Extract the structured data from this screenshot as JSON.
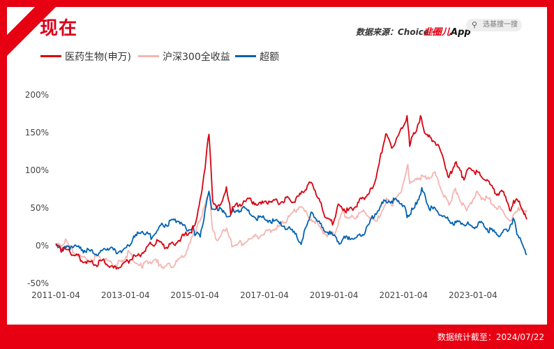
{
  "header": {
    "title": "现在",
    "source": "数据来源：Choice · ",
    "brand_red": "韭圈儿",
    "brand_app": "App",
    "search_placeholder": "选基搜一搜",
    "search_icon": "search-icon"
  },
  "footer": {
    "data_date": "数据统计截至：2024/07/22"
  },
  "colors": {
    "frame": "#e60012",
    "series_1": "#d7000f",
    "series_2": "#f4b5b1",
    "series_3": "#0061b0"
  },
  "chart_data": {
    "type": "line",
    "title": "",
    "xlabel": "",
    "ylabel": "",
    "ylim": [
      -50,
      200
    ],
    "yticks": [
      -50,
      0,
      50,
      100,
      150,
      200
    ],
    "ytick_labels": [
      "-50%",
      "0%",
      "50%",
      "100%",
      "150%",
      "200%"
    ],
    "xlim": [
      "2011-01-04",
      "2024-07-22"
    ],
    "xticks": [
      "2011-01-04",
      "2013-01-04",
      "2015-01-04",
      "2017-01-04",
      "2019-01-04",
      "2021-01-04",
      "2023-01-04"
    ],
    "grid": false,
    "legend": "top-left",
    "series": [
      {
        "name": "医药生物(申万)",
        "color": "#d7000f",
        "points": [
          [
            "2011-01-04",
            0
          ],
          [
            "2011-03-01",
            -5
          ],
          [
            "2011-06-01",
            -8
          ],
          [
            "2011-09-01",
            -15
          ],
          [
            "2011-12-01",
            -22
          ],
          [
            "2012-03-01",
            -25
          ],
          [
            "2012-06-01",
            -20
          ],
          [
            "2012-09-01",
            -30
          ],
          [
            "2012-12-01",
            -27
          ],
          [
            "2013-03-01",
            -18
          ],
          [
            "2013-06-01",
            -12
          ],
          [
            "2013-09-01",
            0
          ],
          [
            "2013-12-01",
            5
          ],
          [
            "2014-03-01",
            -2
          ],
          [
            "2014-06-01",
            3
          ],
          [
            "2014-09-01",
            12
          ],
          [
            "2014-12-01",
            20
          ],
          [
            "2015-01-04",
            28
          ],
          [
            "2015-03-01",
            60
          ],
          [
            "2015-05-01",
            115
          ],
          [
            "2015-06-01",
            150
          ],
          [
            "2015-07-10",
            60
          ],
          [
            "2015-09-01",
            50
          ],
          [
            "2015-12-01",
            75
          ],
          [
            "2016-01-15",
            45
          ],
          [
            "2016-04-01",
            55
          ],
          [
            "2016-08-01",
            60
          ],
          [
            "2016-12-01",
            55
          ],
          [
            "2017-03-01",
            60
          ],
          [
            "2017-06-01",
            58
          ],
          [
            "2017-09-01",
            62
          ],
          [
            "2017-12-01",
            60
          ],
          [
            "2018-03-01",
            75
          ],
          [
            "2018-05-20",
            85
          ],
          [
            "2018-08-01",
            60
          ],
          [
            "2018-10-20",
            35
          ],
          [
            "2018-12-20",
            30
          ],
          [
            "2019-03-01",
            55
          ],
          [
            "2019-06-01",
            45
          ],
          [
            "2019-09-01",
            55
          ],
          [
            "2019-12-01",
            65
          ],
          [
            "2020-02-01",
            75
          ],
          [
            "2020-04-01",
            95
          ],
          [
            "2020-07-01",
            150
          ],
          [
            "2020-09-01",
            130
          ],
          [
            "2020-12-01",
            150
          ],
          [
            "2021-02-10",
            170
          ],
          [
            "2021-03-10",
            135
          ],
          [
            "2021-05-01",
            150
          ],
          [
            "2021-07-01",
            170
          ],
          [
            "2021-09-01",
            145
          ],
          [
            "2021-12-01",
            140
          ],
          [
            "2022-03-01",
            115
          ],
          [
            "2022-04-25",
            90
          ],
          [
            "2022-07-01",
            110
          ],
          [
            "2022-10-01",
            90
          ],
          [
            "2022-12-01",
            105
          ],
          [
            "2023-03-01",
            95
          ],
          [
            "2023-06-01",
            85
          ],
          [
            "2023-09-01",
            70
          ],
          [
            "2023-12-01",
            70
          ],
          [
            "2024-02-05",
            45
          ],
          [
            "2024-03-15",
            60
          ],
          [
            "2024-05-15",
            55
          ],
          [
            "2024-07-22",
            35
          ]
        ]
      },
      {
        "name": "沪深300全收益",
        "color": "#f4b5b1",
        "points": [
          [
            "2011-01-04",
            0
          ],
          [
            "2011-04-15",
            5
          ],
          [
            "2011-08-01",
            -10
          ],
          [
            "2011-12-01",
            -20
          ],
          [
            "2012-03-01",
            -15
          ],
          [
            "2012-06-01",
            -18
          ],
          [
            "2012-09-01",
            -25
          ],
          [
            "2012-12-01",
            -22
          ],
          [
            "2013-02-01",
            -10
          ],
          [
            "2013-06-25",
            -28
          ],
          [
            "2013-09-01",
            -20
          ],
          [
            "2013-12-01",
            -22
          ],
          [
            "2014-03-01",
            -28
          ],
          [
            "2014-06-01",
            -25
          ],
          [
            "2014-09-01",
            -15
          ],
          [
            "2014-12-10",
            10
          ],
          [
            "2015-01-04",
            15
          ],
          [
            "2015-03-01",
            35
          ],
          [
            "2015-06-08",
            70
          ],
          [
            "2015-07-08",
            20
          ],
          [
            "2015-09-01",
            5
          ],
          [
            "2015-12-01",
            25
          ],
          [
            "2016-01-28",
            0
          ],
          [
            "2016-04-01",
            2
          ],
          [
            "2016-08-01",
            8
          ],
          [
            "2016-12-01",
            15
          ],
          [
            "2017-03-01",
            20
          ],
          [
            "2017-06-01",
            25
          ],
          [
            "2017-09-01",
            35
          ],
          [
            "2018-01-24",
            55
          ],
          [
            "2018-04-01",
            40
          ],
          [
            "2018-07-01",
            30
          ],
          [
            "2018-10-15",
            15
          ],
          [
            "2019-01-04",
            15
          ],
          [
            "2019-04-08",
            45
          ],
          [
            "2019-06-01",
            35
          ],
          [
            "2019-09-01",
            40
          ],
          [
            "2019-12-01",
            45
          ],
          [
            "2020-03-23",
            30
          ],
          [
            "2020-07-08",
            60
          ],
          [
            "2020-09-01",
            55
          ],
          [
            "2020-12-01",
            70
          ],
          [
            "2021-02-18",
            105
          ],
          [
            "2021-03-10",
            80
          ],
          [
            "2021-06-01",
            90
          ],
          [
            "2021-09-01",
            90
          ],
          [
            "2021-12-01",
            95
          ],
          [
            "2022-03-15",
            65
          ],
          [
            "2022-04-26",
            55
          ],
          [
            "2022-07-04",
            75
          ],
          [
            "2022-10-31",
            45
          ],
          [
            "2023-01-30",
            70
          ],
          [
            "2023-04-01",
            65
          ],
          [
            "2023-07-01",
            60
          ],
          [
            "2023-10-01",
            50
          ],
          [
            "2024-02-05",
            35
          ],
          [
            "2024-05-15",
            50
          ],
          [
            "2024-07-22",
            45
          ]
        ]
      },
      {
        "name": "超额",
        "color": "#0061b0",
        "points": [
          [
            "2011-01-04",
            0
          ],
          [
            "2011-04-01",
            -5
          ],
          [
            "2011-07-01",
            0
          ],
          [
            "2011-10-01",
            -5
          ],
          [
            "2012-01-01",
            -8
          ],
          [
            "2012-04-01",
            -12
          ],
          [
            "2012-07-01",
            -2
          ],
          [
            "2012-10-01",
            -8
          ],
          [
            "2013-01-04",
            -5
          ],
          [
            "2013-04-01",
            10
          ],
          [
            "2013-07-01",
            20
          ],
          [
            "2013-10-01",
            12
          ],
          [
            "2014-01-01",
            25
          ],
          [
            "2014-04-01",
            30
          ],
          [
            "2014-07-01",
            35
          ],
          [
            "2014-10-01",
            22
          ],
          [
            "2014-12-15",
            25
          ],
          [
            "2015-01-04",
            15
          ],
          [
            "2015-03-01",
            15
          ],
          [
            "2015-06-01",
            70
          ],
          [
            "2015-07-10",
            45
          ],
          [
            "2015-09-01",
            50
          ],
          [
            "2015-12-01",
            40
          ],
          [
            "2016-02-01",
            45
          ],
          [
            "2016-06-01",
            50
          ],
          [
            "2016-10-01",
            38
          ],
          [
            "2017-02-01",
            35
          ],
          [
            "2017-06-01",
            30
          ],
          [
            "2017-10-01",
            22
          ],
          [
            "2018-01-24",
            5
          ],
          [
            "2018-05-20",
            45
          ],
          [
            "2018-08-01",
            30
          ],
          [
            "2018-12-01",
            15
          ],
          [
            "2019-03-01",
            5
          ],
          [
            "2019-06-01",
            12
          ],
          [
            "2019-09-01",
            10
          ],
          [
            "2019-12-01",
            20
          ],
          [
            "2020-03-23",
            45
          ],
          [
            "2020-07-01",
            60
          ],
          [
            "2020-10-01",
            60
          ],
          [
            "2021-01-04",
            55
          ],
          [
            "2021-02-10",
            40
          ],
          [
            "2021-05-01",
            50
          ],
          [
            "2021-07-15",
            75
          ],
          [
            "2021-10-01",
            50
          ],
          [
            "2022-01-01",
            45
          ],
          [
            "2022-04-01",
            35
          ],
          [
            "2022-07-01",
            30
          ],
          [
            "2022-10-01",
            30
          ],
          [
            "2023-01-01",
            25
          ],
          [
            "2023-04-01",
            30
          ],
          [
            "2023-07-01",
            20
          ],
          [
            "2023-10-01",
            15
          ],
          [
            "2024-01-01",
            20
          ],
          [
            "2024-03-01",
            35
          ],
          [
            "2024-05-01",
            10
          ],
          [
            "2024-07-22",
            -12
          ]
        ]
      }
    ]
  }
}
